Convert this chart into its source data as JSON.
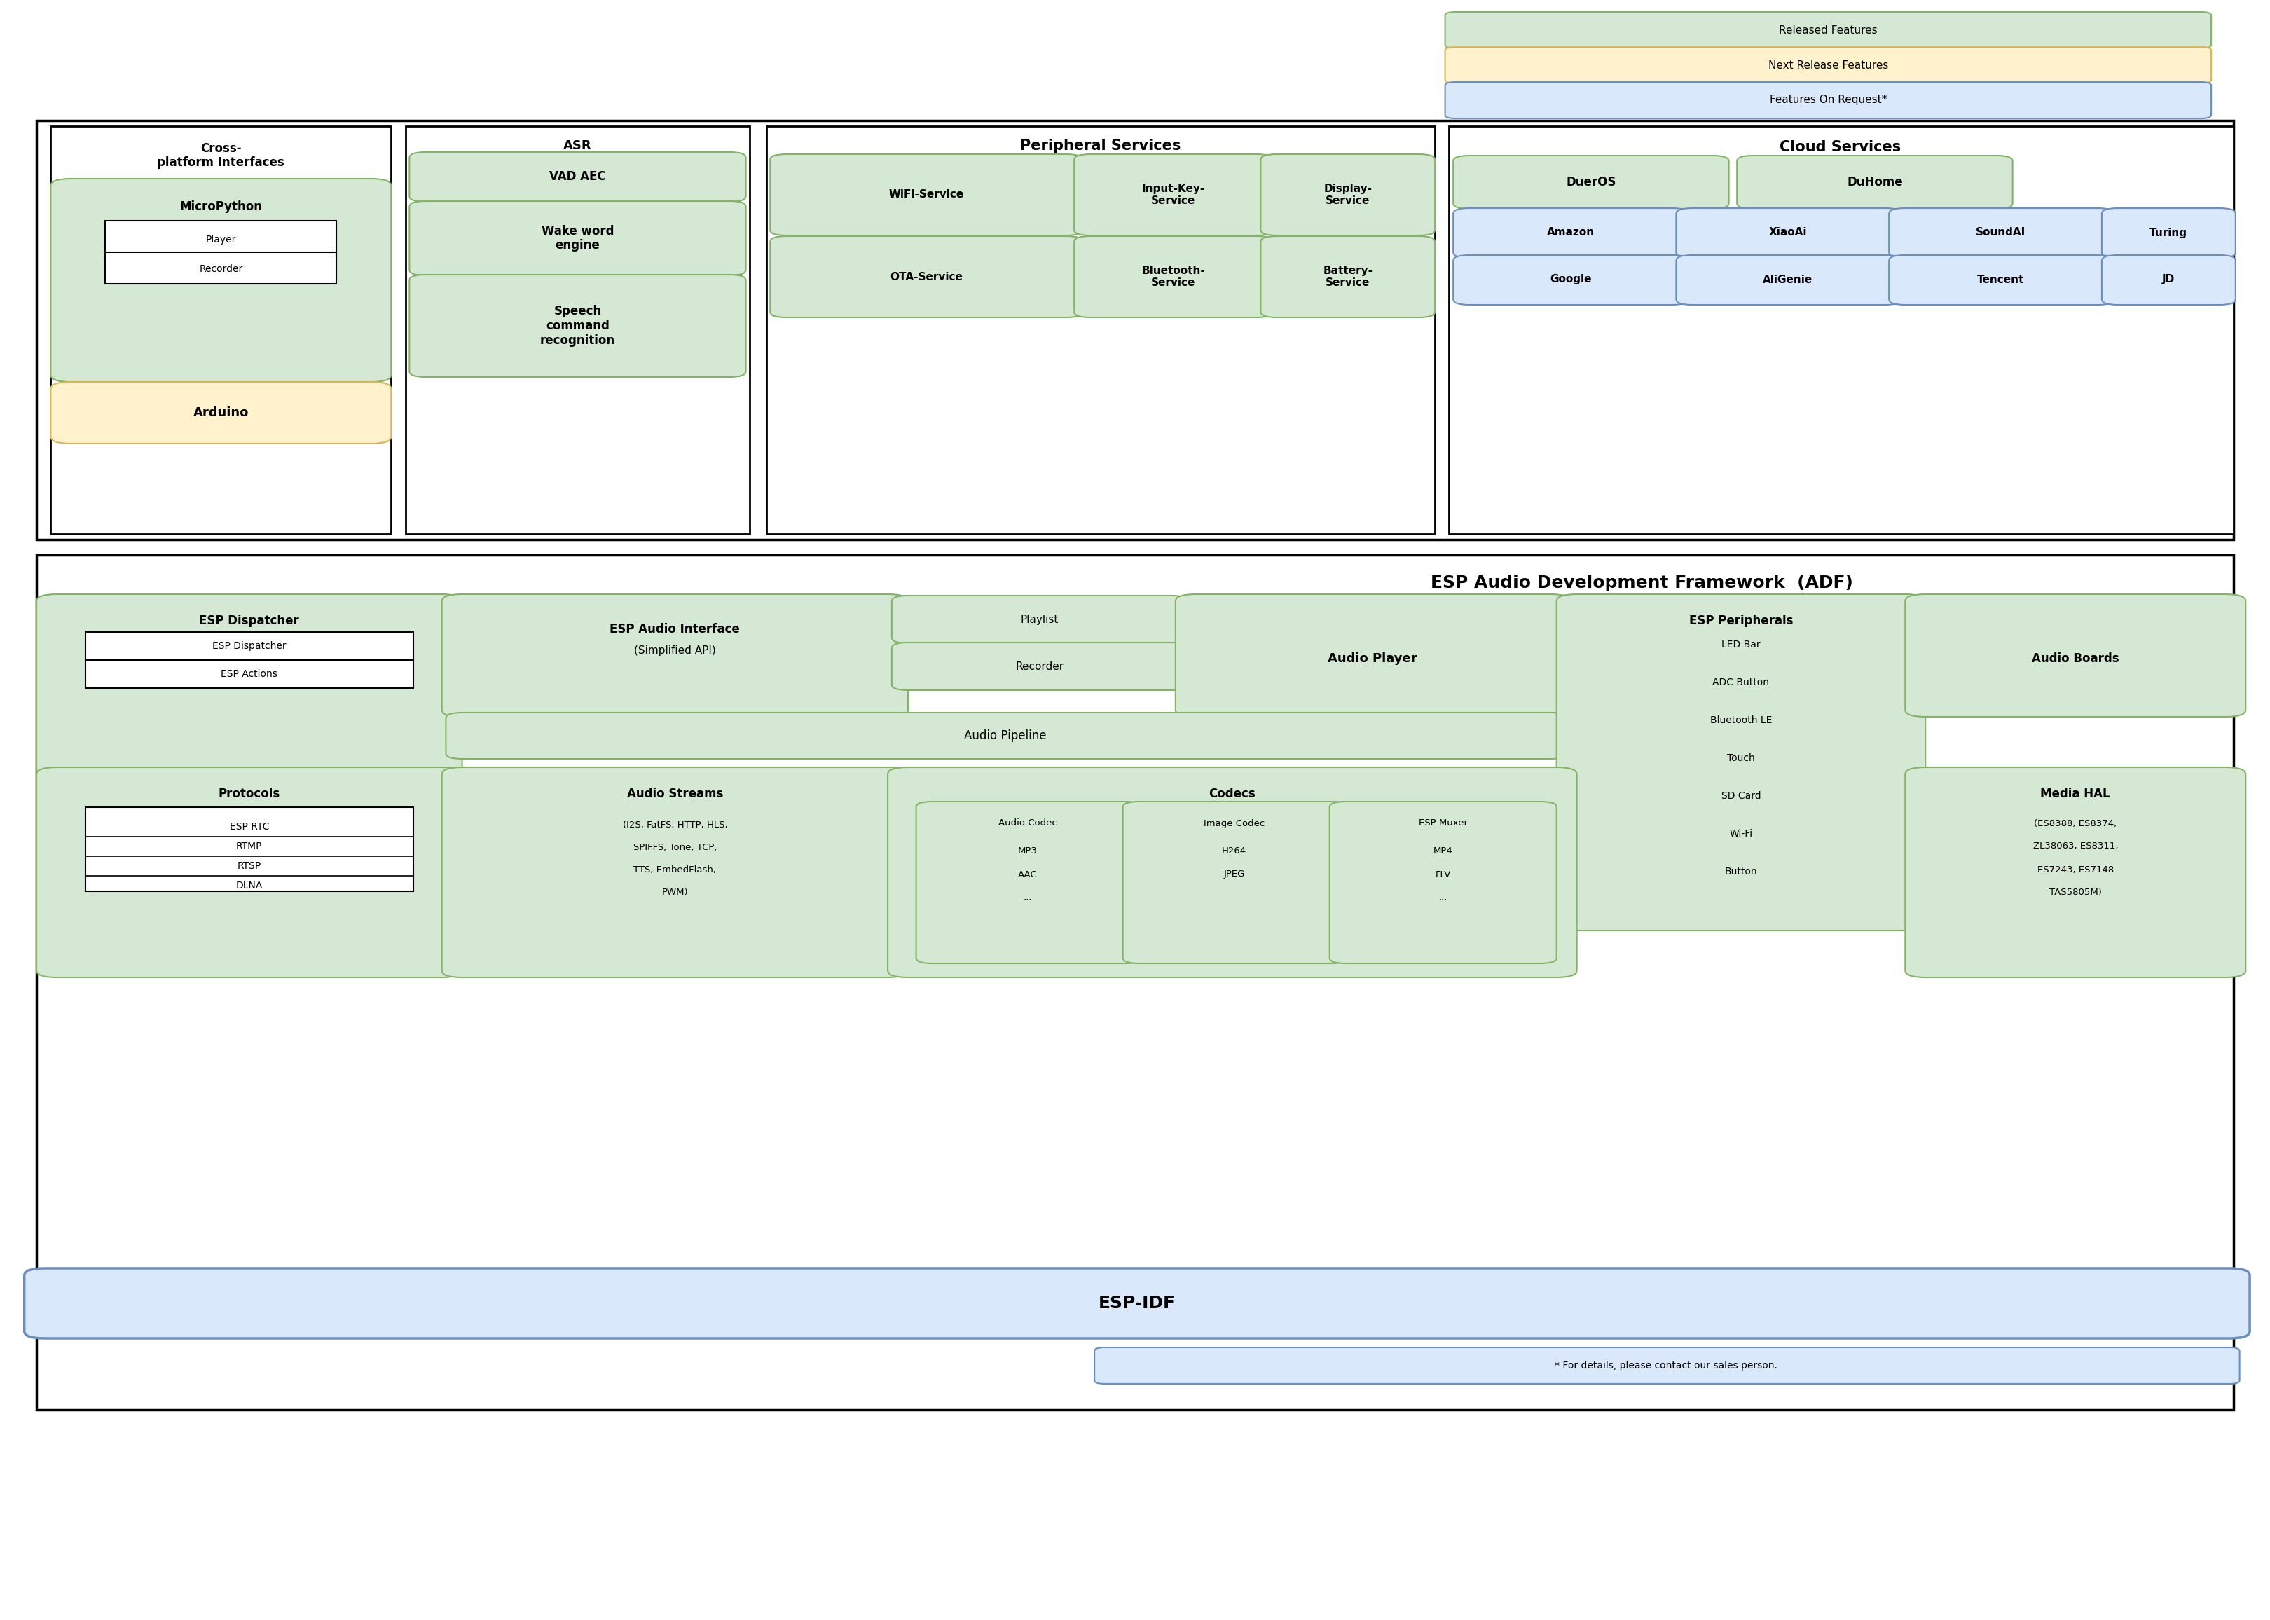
{
  "bg_color": "#ffffff",
  "colors": {
    "green_fill": "#d5e8d4",
    "green_edge": "#82b366",
    "yellow_fill": "#fff2cc",
    "yellow_edge": "#d6b656",
    "blue_fill": "#dae8fc",
    "blue_edge": "#6c8ebf",
    "white": "#ffffff",
    "black": "#000000"
  },
  "legend": {
    "released": {
      "label": "Released Features",
      "color": "#d5e8d4",
      "edge": "#82b366"
    },
    "next_release": {
      "label": "Next Release Features",
      "color": "#fff2cc",
      "edge": "#d6b656"
    },
    "on_request": {
      "label": "Features On Request*",
      "color": "#dae8fc",
      "edge": "#6c8ebf"
    }
  }
}
